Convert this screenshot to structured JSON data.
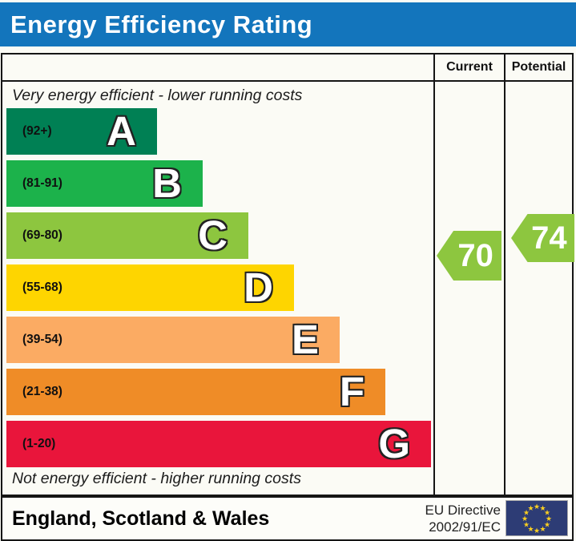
{
  "title": "Energy Efficiency Rating",
  "colors": {
    "title_bar_bg": "#1375bc",
    "title_text": "#ffffff",
    "border": "#151515",
    "arrow_green": "#8dc63f",
    "eu_flag_bg": "#2d3c75",
    "eu_star": "#fcd020"
  },
  "table": {
    "columns": {
      "current": "Current",
      "potential": "Potential"
    },
    "top_caption": "Very energy efficient - lower running costs",
    "bottom_caption": "Not energy efficient - higher running costs"
  },
  "chart_data": {
    "type": "bar",
    "title": "Energy Efficiency Rating",
    "bands": [
      {
        "letter": "A",
        "range": "(92+)",
        "min": 92,
        "max": 100,
        "color": "#008054"
      },
      {
        "letter": "B",
        "range": "(81-91)",
        "min": 81,
        "max": 91,
        "color": "#1cb24b"
      },
      {
        "letter": "C",
        "range": "(69-80)",
        "min": 69,
        "max": 80,
        "color": "#8dc63f"
      },
      {
        "letter": "D",
        "range": "(55-68)",
        "min": 55,
        "max": 68,
        "color": "#fed500"
      },
      {
        "letter": "E",
        "range": "(39-54)",
        "min": 39,
        "max": 54,
        "color": "#fbab63"
      },
      {
        "letter": "F",
        "range": "(21-38)",
        "min": 21,
        "max": 38,
        "color": "#ef8c27"
      },
      {
        "letter": "G",
        "range": "(1-20)",
        "min": 1,
        "max": 20,
        "color": "#e9153b"
      }
    ],
    "current": {
      "label": "Current",
      "value": 70,
      "band": "C",
      "color": "#8dc63f"
    },
    "potential": {
      "label": "Potential",
      "value": 74,
      "band": "C",
      "color": "#8dc63f"
    }
  },
  "footer": {
    "region": "England, Scotland & Wales",
    "directive_line1": "EU Directive",
    "directive_line2": "2002/91/EC",
    "eu_flag_stars": 12
  }
}
